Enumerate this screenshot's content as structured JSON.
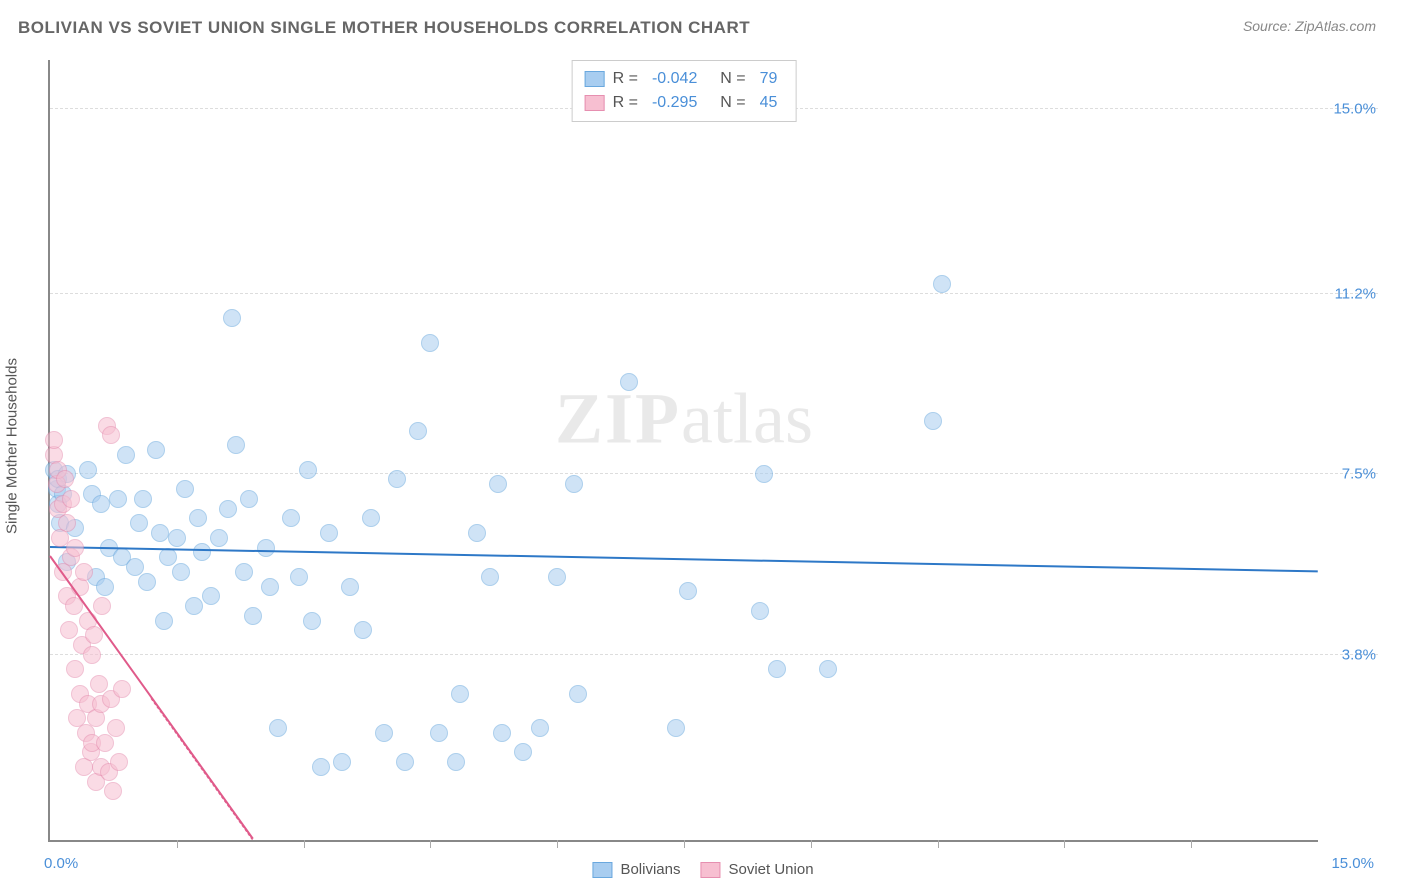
{
  "title": "BOLIVIAN VS SOVIET UNION SINGLE MOTHER HOUSEHOLDS CORRELATION CHART",
  "source_label": "Source: ZipAtlas.com",
  "watermark": {
    "bold": "ZIP",
    "rest": "atlas"
  },
  "chart": {
    "type": "scatter",
    "ylabel": "Single Mother Households",
    "xlim": [
      0,
      15.0
    ],
    "ylim": [
      0,
      16.0
    ],
    "x_min_label": "0.0%",
    "x_max_label": "15.0%",
    "y_gridlines": [
      {
        "value": 3.8,
        "label": "3.8%"
      },
      {
        "value": 7.5,
        "label": "7.5%"
      },
      {
        "value": 11.2,
        "label": "11.2%"
      },
      {
        "value": 15.0,
        "label": "15.0%"
      }
    ],
    "x_ticks": [
      1.5,
      3.0,
      4.5,
      6.0,
      7.5,
      9.0,
      10.5,
      12.0,
      13.5
    ],
    "background_color": "#ffffff",
    "grid_color": "#dddddd",
    "axis_color": "#888888",
    "series": [
      {
        "name": "Bolivians",
        "color_fill": "#a8cdf0",
        "color_stroke": "#6aa8de",
        "marker_radius": 9,
        "fill_opacity": 0.55,
        "R": "-0.042",
        "N": "79",
        "trend": {
          "x1": 0,
          "y1": 6.0,
          "x2": 15.0,
          "y2": 5.5,
          "color": "#2e78c7",
          "width": 2
        },
        "points": [
          [
            0.05,
            7.6
          ],
          [
            0.08,
            7.2
          ],
          [
            0.1,
            6.9
          ],
          [
            0.1,
            7.4
          ],
          [
            0.12,
            6.5
          ],
          [
            0.15,
            7.1
          ],
          [
            0.2,
            7.5
          ],
          [
            0.2,
            5.7
          ],
          [
            0.5,
            7.1
          ],
          [
            0.55,
            5.4
          ],
          [
            0.6,
            6.9
          ],
          [
            0.65,
            5.2
          ],
          [
            0.7,
            6.0
          ],
          [
            0.8,
            7.0
          ],
          [
            0.85,
            5.8
          ],
          [
            0.9,
            7.9
          ],
          [
            1.0,
            5.6
          ],
          [
            1.05,
            6.5
          ],
          [
            1.1,
            7.0
          ],
          [
            1.15,
            5.3
          ],
          [
            1.3,
            6.3
          ],
          [
            1.35,
            4.5
          ],
          [
            1.4,
            5.8
          ],
          [
            1.5,
            6.2
          ],
          [
            1.55,
            5.5
          ],
          [
            1.6,
            7.2
          ],
          [
            1.7,
            4.8
          ],
          [
            1.75,
            6.6
          ],
          [
            1.8,
            5.9
          ],
          [
            1.9,
            5.0
          ],
          [
            2.0,
            6.2
          ],
          [
            2.1,
            6.8
          ],
          [
            2.15,
            10.7
          ],
          [
            2.2,
            8.1
          ],
          [
            2.3,
            5.5
          ],
          [
            2.35,
            7.0
          ],
          [
            2.4,
            4.6
          ],
          [
            2.55,
            6.0
          ],
          [
            2.6,
            5.2
          ],
          [
            2.7,
            2.3
          ],
          [
            2.85,
            6.6
          ],
          [
            2.95,
            5.4
          ],
          [
            3.1,
            4.5
          ],
          [
            3.2,
            1.5
          ],
          [
            3.3,
            6.3
          ],
          [
            3.45,
            1.6
          ],
          [
            3.55,
            5.2
          ],
          [
            3.7,
            4.3
          ],
          [
            3.8,
            6.6
          ],
          [
            3.95,
            2.2
          ],
          [
            4.1,
            7.4
          ],
          [
            4.2,
            1.6
          ],
          [
            4.35,
            8.4
          ],
          [
            4.5,
            10.2
          ],
          [
            4.6,
            2.2
          ],
          [
            4.8,
            1.6
          ],
          [
            4.85,
            3.0
          ],
          [
            5.05,
            6.3
          ],
          [
            5.2,
            5.4
          ],
          [
            5.3,
            7.3
          ],
          [
            5.35,
            2.2
          ],
          [
            5.6,
            1.8
          ],
          [
            5.8,
            2.3
          ],
          [
            6.0,
            5.4
          ],
          [
            6.2,
            7.3
          ],
          [
            6.25,
            3.0
          ],
          [
            6.85,
            9.4
          ],
          [
            7.4,
            2.3
          ],
          [
            8.4,
            4.7
          ],
          [
            8.45,
            7.5
          ],
          [
            8.6,
            3.5
          ],
          [
            9.2,
            3.5
          ],
          [
            10.45,
            8.6
          ],
          [
            10.55,
            11.4
          ],
          [
            7.55,
            5.1
          ],
          [
            3.05,
            7.6
          ],
          [
            1.25,
            8.0
          ],
          [
            0.45,
            7.6
          ],
          [
            0.3,
            6.4
          ]
        ]
      },
      {
        "name": "Soviet Union",
        "color_fill": "#f7bfd1",
        "color_stroke": "#e68fb0",
        "marker_radius": 9,
        "fill_opacity": 0.55,
        "R": "-0.295",
        "N": "45",
        "trend": {
          "x1": 0,
          "y1": 5.8,
          "x2": 2.4,
          "y2": 0,
          "color": "#e05a8a",
          "width": 2,
          "dash_extend_to_x": 2.4
        },
        "points": [
          [
            0.05,
            7.9
          ],
          [
            0.08,
            7.3
          ],
          [
            0.1,
            6.8
          ],
          [
            0.1,
            7.6
          ],
          [
            0.12,
            6.2
          ],
          [
            0.15,
            5.5
          ],
          [
            0.15,
            6.9
          ],
          [
            0.18,
            7.4
          ],
          [
            0.2,
            5.0
          ],
          [
            0.2,
            6.5
          ],
          [
            0.22,
            4.3
          ],
          [
            0.25,
            5.8
          ],
          [
            0.25,
            7.0
          ],
          [
            0.28,
            4.8
          ],
          [
            0.3,
            3.5
          ],
          [
            0.3,
            6.0
          ],
          [
            0.32,
            2.5
          ],
          [
            0.35,
            5.2
          ],
          [
            0.35,
            3.0
          ],
          [
            0.38,
            4.0
          ],
          [
            0.4,
            1.5
          ],
          [
            0.4,
            5.5
          ],
          [
            0.42,
            2.2
          ],
          [
            0.45,
            4.5
          ],
          [
            0.45,
            2.8
          ],
          [
            0.48,
            1.8
          ],
          [
            0.5,
            3.8
          ],
          [
            0.5,
            2.0
          ],
          [
            0.52,
            4.2
          ],
          [
            0.55,
            1.2
          ],
          [
            0.55,
            2.5
          ],
          [
            0.58,
            3.2
          ],
          [
            0.6,
            1.5
          ],
          [
            0.6,
            2.8
          ],
          [
            0.62,
            4.8
          ],
          [
            0.65,
            2.0
          ],
          [
            0.68,
            8.5
          ],
          [
            0.7,
            1.4
          ],
          [
            0.72,
            2.9
          ],
          [
            0.75,
            1.0
          ],
          [
            0.78,
            2.3
          ],
          [
            0.82,
            1.6
          ],
          [
            0.85,
            3.1
          ],
          [
            0.72,
            8.3
          ],
          [
            0.05,
            8.2
          ]
        ]
      }
    ],
    "legend_bottom": [
      {
        "label": "Bolivians",
        "fill": "#a8cdf0",
        "stroke": "#6aa8de"
      },
      {
        "label": "Soviet Union",
        "fill": "#f7bfd1",
        "stroke": "#e68fb0"
      }
    ]
  }
}
